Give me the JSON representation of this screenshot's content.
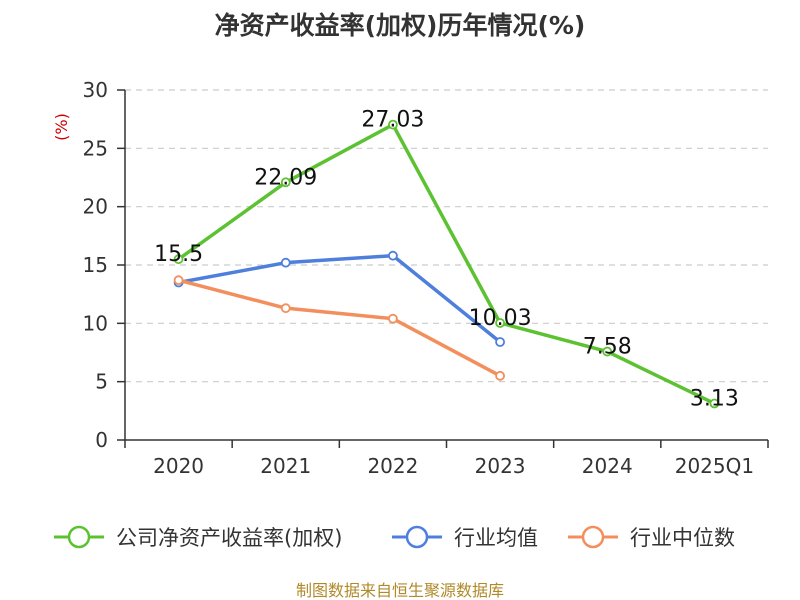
{
  "chart_data": {
    "type": "line",
    "title": "净资产收益率(加权)历年情况(%)",
    "ylabel": "(%)",
    "xlabel": "",
    "categories": [
      "2020",
      "2021",
      "2022",
      "2023",
      "2024",
      "2025Q1"
    ],
    "ylim": [
      0,
      30
    ],
    "yticks": [
      0,
      5,
      10,
      15,
      20,
      25,
      30
    ],
    "grid": true,
    "legend_position": "bottom",
    "series": [
      {
        "name": "公司净资产收益率(加权)",
        "color": "#5cc232",
        "values": [
          15.5,
          22.09,
          27.03,
          10.03,
          7.58,
          3.13
        ],
        "labels": [
          "15.5",
          "22.09",
          "27.03",
          "10.03",
          "7.58",
          "3.13"
        ]
      },
      {
        "name": "行业均值",
        "color": "#4f7fdc",
        "values": [
          13.5,
          15.2,
          15.8,
          8.4,
          null,
          null
        ]
      },
      {
        "name": "行业中位数",
        "color": "#f28f5c",
        "values": [
          13.7,
          11.3,
          10.4,
          5.5,
          null,
          null
        ]
      }
    ]
  },
  "footer": {
    "source": "制图数据来自恒生聚源数据库"
  }
}
